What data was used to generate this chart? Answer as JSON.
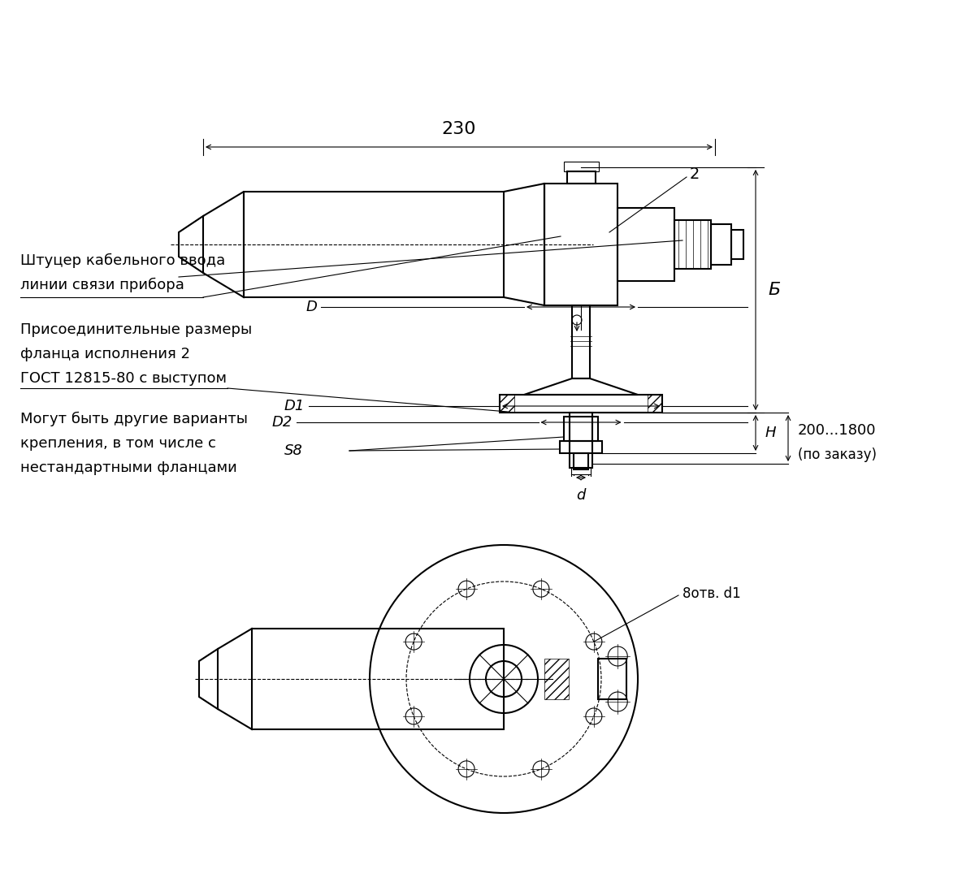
{
  "bg_color": "#ffffff",
  "line_color": "#000000",
  "dim_color": "#000000",
  "text_color": "#000000",
  "hatch_color": "#000000",
  "label_230": "230",
  "label_B": "Б",
  "label_200_1800": "200...1800",
  "label_po_zakazu": "(по заказу)",
  "label_2": "2",
  "label_D": "D",
  "label_D1": "D1",
  "label_D2": "D2",
  "label_S8": "S8",
  "label_H": "H",
  "label_d": "d",
  "label_8otv": "8отв. d1",
  "annotation1_line1": "Штуцер кабельного ввода",
  "annotation1_line2": "линии связи прибора",
  "annotation2_line1": "Присоединительные размеры",
  "annotation2_line2": "фланца исполнения 2",
  "annotation2_line3": "ГОСТ 12815-80 с выступом",
  "annotation3_line1": "Могут быть другие варианты",
  "annotation3_line2": "крепления, в том числе с",
  "annotation3_line3": "нестандартными фланцами",
  "figsize": [
    12.0,
    10.86
  ],
  "dpi": 100
}
